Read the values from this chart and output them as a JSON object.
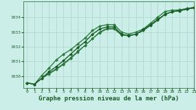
{
  "background_color": "#cceee8",
  "grid_color": "#aad4cc",
  "line_color_dark": "#1a5c28",
  "line_color_med": "#2e7d40",
  "xlabel": "Graphe pression niveau de la mer (hPa)",
  "xlabel_fontsize": 6.5,
  "xlim": [
    -0.5,
    23
  ],
  "ylim": [
    1029.2,
    1035.1
  ],
  "yticks": [
    1030,
    1031,
    1032,
    1033,
    1034
  ],
  "xticks": [
    0,
    1,
    2,
    3,
    4,
    5,
    6,
    7,
    8,
    9,
    10,
    11,
    12,
    13,
    14,
    15,
    16,
    17,
    18,
    19,
    20,
    21,
    22,
    23
  ],
  "series": [
    {
      "y": [
        1029.55,
        1029.45,
        1029.85,
        1030.3,
        1030.65,
        1031.05,
        1031.5,
        1031.95,
        1032.35,
        1032.85,
        1033.2,
        1033.35,
        1033.35,
        1032.85,
        1032.75,
        1032.85,
        1033.15,
        1033.5,
        1033.85,
        1034.2,
        1034.38,
        1034.45,
        1034.55,
        1034.65
      ],
      "color": "#1a5c28",
      "lw": 1.0,
      "marker": "D",
      "ms": 2.0,
      "zorder": 4
    },
    {
      "y": [
        1029.55,
        1029.45,
        1030.05,
        1030.55,
        1031.1,
        1031.5,
        1031.8,
        1032.2,
        1032.6,
        1033.1,
        1033.4,
        1033.5,
        1033.5,
        1033.0,
        1032.85,
        1033.0,
        1033.2,
        1033.6,
        1034.0,
        1034.4,
        1034.48,
        1034.5,
        1034.6,
        1034.68
      ],
      "color": "#2e7d40",
      "lw": 1.0,
      "marker": "D",
      "ms": 2.0,
      "zorder": 3
    },
    {
      "y": [
        1029.55,
        1029.45,
        1029.85,
        1030.2,
        1030.5,
        1030.85,
        1031.25,
        1031.7,
        1032.1,
        1032.55,
        1033.0,
        1033.25,
        1033.25,
        1032.8,
        1032.75,
        1032.85,
        1033.1,
        1033.45,
        1033.8,
        1034.2,
        1034.38,
        1034.45,
        1034.55,
        1034.65
      ],
      "color": "#1a5c28",
      "lw": 0.8,
      "marker": "D",
      "ms": 1.8,
      "zorder": 2
    },
    {
      "y": [
        1029.55,
        1029.45,
        1029.85,
        1030.15,
        1030.45,
        1030.8,
        1031.2,
        1031.65,
        1032.1,
        1032.55,
        1032.95,
        1033.2,
        1033.2,
        1032.8,
        1032.75,
        1032.85,
        1033.1,
        1033.45,
        1033.82,
        1034.22,
        1034.38,
        1034.45,
        1034.55,
        1034.65
      ],
      "color": "#2e7d40",
      "lw": 0.8,
      "marker": "D",
      "ms": 1.8,
      "zorder": 2
    }
  ],
  "marker": "D",
  "markersize": 2.0,
  "linewidth": 1.0
}
